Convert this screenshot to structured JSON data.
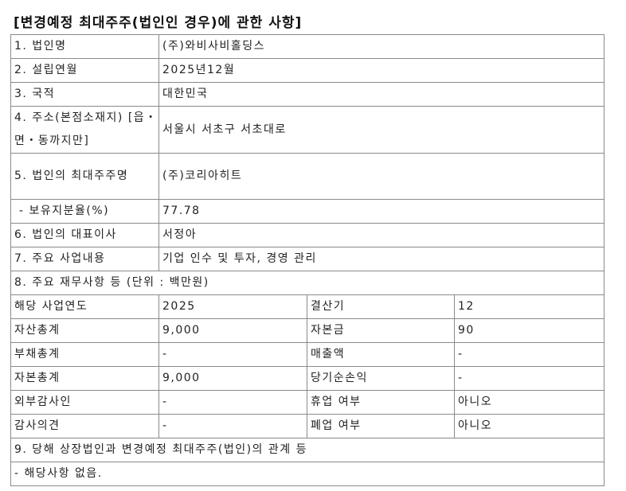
{
  "title": "[변경예정 최대주주(법인인 경우)에 관한 사항]",
  "rows": [
    {
      "label": "1. 법인명",
      "value": "(주)와비사비홀딩스"
    },
    {
      "label": "2. 설립연월",
      "value": "2025년12월"
    },
    {
      "label": "3. 국적",
      "value": "대한민국"
    },
    {
      "label": "4. 주소(본점소재지) [읍・면・동까지만]",
      "value": "서울시 서초구 서초대로"
    },
    {
      "label": "5. 법인의 최대주주명",
      "value": "(주)코리아히트"
    },
    {
      "label": " - 보유지분율(%)",
      "value": "77.78"
    },
    {
      "label": "6. 법인의 대표이사",
      "value": "서정아"
    },
    {
      "label": "7. 주요 사업내용",
      "value": "기업 인수 및 투자, 경영 관리"
    }
  ],
  "financials_header": "8. 주요 재무사항 등 (단위 : 백만원)",
  "financials": [
    [
      "해당 사업연도",
      "2025",
      "결산기",
      "12"
    ],
    [
      "자산총계",
      "9,000",
      "자본금",
      "90"
    ],
    [
      "부채총계",
      "-",
      "매출액",
      "-"
    ],
    [
      "자본총계",
      "9,000",
      "당기순손익",
      "-"
    ],
    [
      "외부감사인",
      "-",
      "휴업 여부",
      "아니오"
    ],
    [
      "감사의견",
      "-",
      "폐업 여부",
      "아니오"
    ]
  ],
  "relation_header": "9. 당해 상장법인과 변경예정 최대주주(법인)의 관계 등",
  "relation_value": "- 해당사항 없음."
}
